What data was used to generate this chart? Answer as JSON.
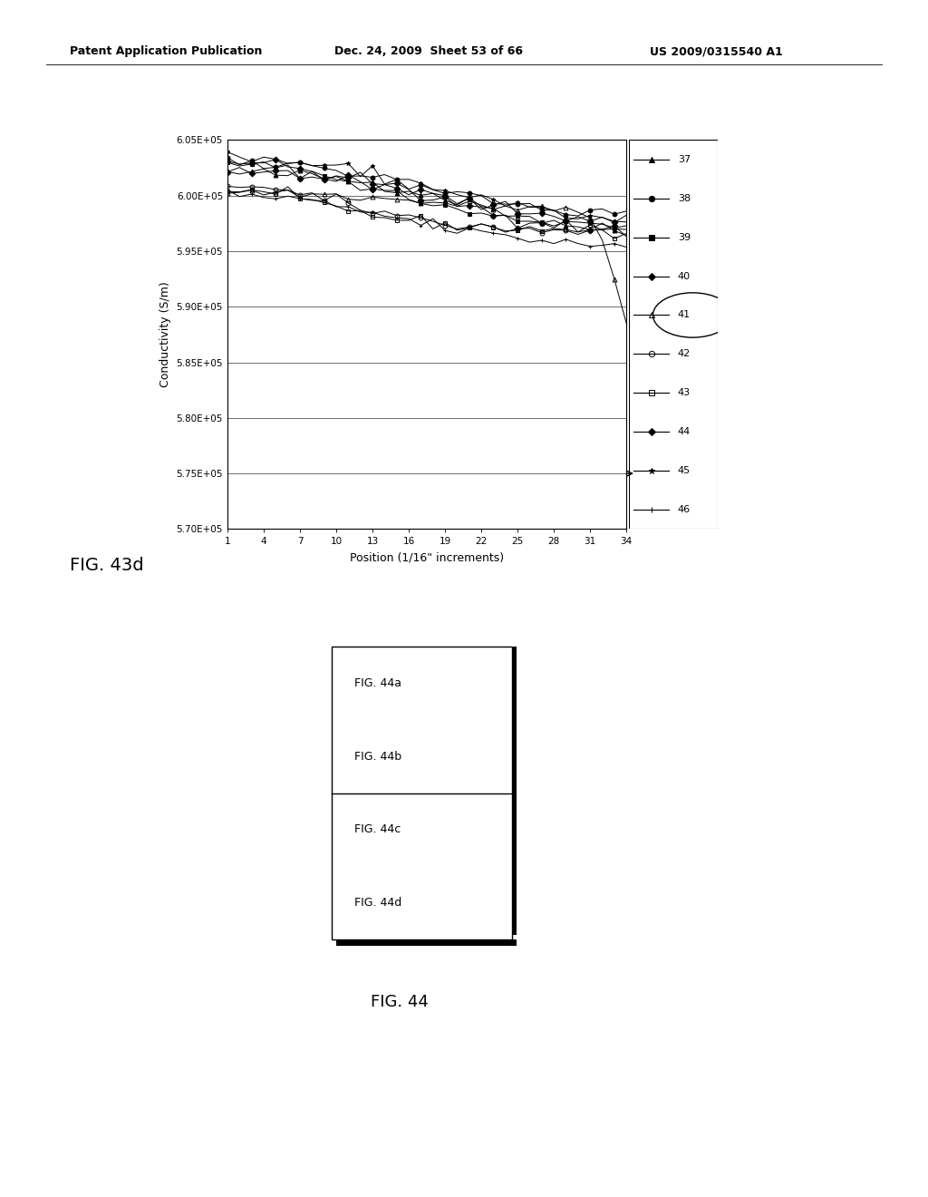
{
  "header_left": "Patent Application Publication",
  "header_mid": "Dec. 24, 2009  Sheet 53 of 66",
  "header_right": "US 2009/0315540 A1",
  "fig43d_label": "FIG. 43d",
  "fig44_label": "FIG. 44",
  "chart_xlabel": "Position (1/16\" increments)",
  "chart_ylabel": "Conductivity (S/m)",
  "ytick_labels": [
    "5.70E+05",
    "5.75E+05",
    "5.80E+05",
    "5.85E+05",
    "5.90E+05",
    "5.95E+05",
    "6.00E+05",
    "6.05E+05"
  ],
  "yvals": [
    570000,
    575000,
    580000,
    585000,
    590000,
    595000,
    600000,
    605000
  ],
  "xticks": [
    1,
    4,
    7,
    10,
    13,
    16,
    19,
    22,
    25,
    28,
    31,
    34
  ],
  "xlim": [
    1,
    34
  ],
  "ylim": [
    570000,
    605000
  ],
  "legend_labels": [
    "37",
    "38",
    "39",
    "40",
    "41",
    "42",
    "43",
    "44",
    "45",
    "46"
  ],
  "markers": [
    "^",
    "o",
    "s",
    "D",
    "^",
    "o",
    "s",
    "D",
    "*",
    "+"
  ],
  "fillstyles": [
    "full",
    "full",
    "full",
    "full",
    "none",
    "none",
    "none",
    "full",
    "full",
    "full"
  ],
  "fig44_panels": [
    "FIG. 44a",
    "FIG. 44b",
    "FIG. 44c",
    "FIG. 44d"
  ],
  "background_color": "#ffffff"
}
